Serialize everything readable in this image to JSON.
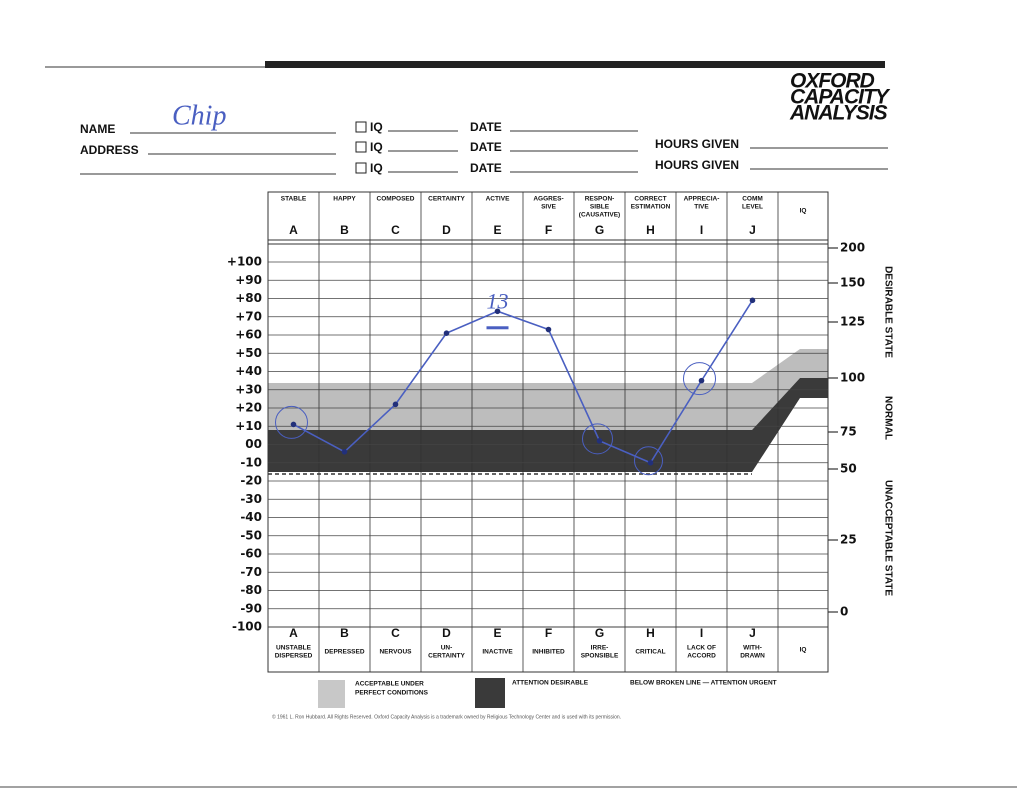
{
  "header": {
    "logo": [
      "OXFORD",
      "CAPACITY",
      "ANALYSIS"
    ]
  },
  "form": {
    "name_label": "NAME",
    "name_value": "Chip",
    "address_label": "ADDRESS",
    "iq_fields": [
      "IQ",
      "IQ",
      "IQ"
    ],
    "date_fields": [
      "DATE",
      "DATE",
      "DATE"
    ],
    "hours_fields": [
      "HOURS GIVEN",
      "HOURS GIVEN"
    ]
  },
  "chart_data": {
    "type": "line",
    "categories": [
      "A",
      "B",
      "C",
      "D",
      "E",
      "F",
      "G",
      "H",
      "I",
      "J"
    ],
    "top_labels": [
      [
        "STABLE"
      ],
      [
        "HAPPY"
      ],
      [
        "COMPOSED"
      ],
      [
        "CERTAINTY"
      ],
      [
        "ACTIVE"
      ],
      [
        "AGGRES-",
        "SIVE"
      ],
      [
        "RESPON-",
        "SIBLE",
        "(CAUSATIVE)"
      ],
      [
        "CORRECT",
        "ESTIMATION"
      ],
      [
        "APPRECIA-",
        "TIVE"
      ],
      [
        "COMM",
        "LEVEL"
      ]
    ],
    "bottom_labels": [
      [
        "UNSTABLE",
        "DISPERSED"
      ],
      [
        "DEPRESSED"
      ],
      [
        "NERVOUS"
      ],
      [
        "UN-",
        "CERTAINTY"
      ],
      [
        "INACTIVE"
      ],
      [
        "INHIBITED"
      ],
      [
        "IRRE-",
        "SPONSIBLE"
      ],
      [
        "CRITICAL"
      ],
      [
        "LACK OF",
        "ACCORD"
      ],
      [
        "WITH-",
        "DRAWN"
      ]
    ],
    "iq_column": "IQ",
    "values": [
      11,
      -4,
      22,
      61,
      73,
      63,
      2,
      -10,
      35,
      79
    ],
    "color": "#4a5fc1",
    "ylim": [
      -100,
      100
    ],
    "yticks": [
      {
        "value": 100,
        "label": "+100"
      },
      {
        "value": 90,
        "label": "+90"
      },
      {
        "value": 80,
        "label": "+80"
      },
      {
        "value": 70,
        "label": "+70"
      },
      {
        "value": 60,
        "label": "+60"
      },
      {
        "value": 50,
        "label": "+50"
      },
      {
        "value": 40,
        "label": "+40"
      },
      {
        "value": 30,
        "label": "+30"
      },
      {
        "value": 20,
        "label": "+20"
      },
      {
        "value": 10,
        "label": "+10"
      },
      {
        "value": 0,
        "label": "00"
      },
      -10,
      -20,
      -30,
      -40,
      -50,
      -60,
      -70,
      -80,
      -90,
      -100
    ],
    "grid": true,
    "right_scale": [
      200,
      150,
      125,
      100,
      75,
      50,
      25,
      0
    ],
    "side_labels": [
      "DESIRABLE STATE",
      "NORMAL",
      "UNACCEPTABLE STATE"
    ],
    "annotation": "13"
  },
  "legend": [
    [
      "ACCEPTABLE UNDER",
      "PERFECT CONDITIONS"
    ],
    [
      "ATTENTION DESIRABLE"
    ],
    [
      "BELOW BROKEN LINE — ATTENTION URGENT"
    ]
  ],
  "footer": "© 1961 L. Ron Hubbard. All Rights Reserved. Oxford Capacity Analysis is a trademark owned by Religious Technology Center and is used with its permission."
}
